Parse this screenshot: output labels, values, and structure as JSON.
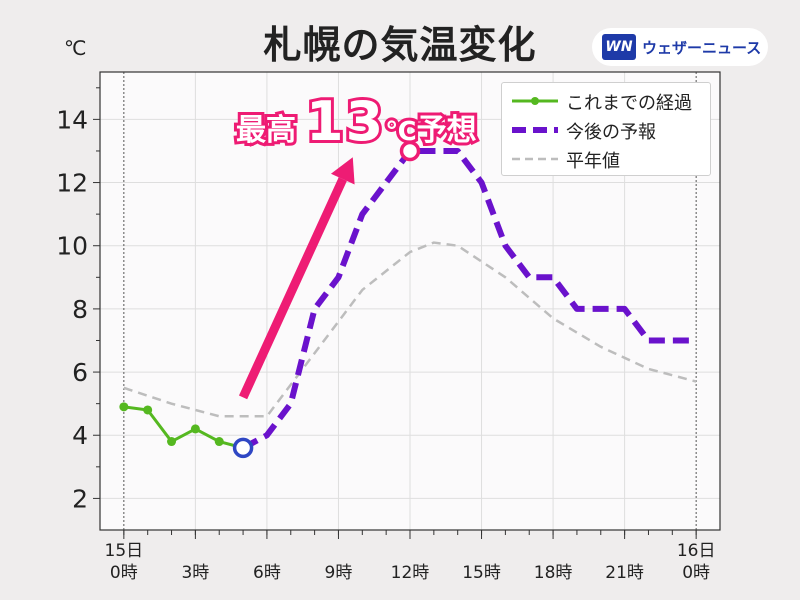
{
  "header": {
    "title": "札幌の気温変化",
    "unit_label": "℃",
    "brand_logo": "WN",
    "brand_name": "ウェザーニュース"
  },
  "callout": {
    "prefix": "最高",
    "value": "13",
    "unit": "℃",
    "suffix": "予想"
  },
  "colors": {
    "observed": "#55b820",
    "forecast": "#6a12cc",
    "normal": "#bdbdbd",
    "accent": "#ee1c74",
    "now_marker": "#2f47c4"
  },
  "chart_data": {
    "type": "line",
    "title": "札幌の気温変化",
    "ylabel": "℃",
    "xlabel": "",
    "ylim": [
      1,
      15.5
    ],
    "xlim": [
      -1,
      25
    ],
    "yticks": [
      2,
      4,
      6,
      8,
      10,
      12,
      14
    ],
    "xticks": [
      {
        "x": 0,
        "labels": [
          "15日",
          "0時"
        ]
      },
      {
        "x": 3,
        "labels": [
          "",
          "3時"
        ]
      },
      {
        "x": 6,
        "labels": [
          "",
          "6時"
        ]
      },
      {
        "x": 9,
        "labels": [
          "",
          "9時"
        ]
      },
      {
        "x": 12,
        "labels": [
          "",
          "12時"
        ]
      },
      {
        "x": 15,
        "labels": [
          "",
          "15時"
        ]
      },
      {
        "x": 18,
        "labels": [
          "",
          "18時"
        ]
      },
      {
        "x": 21,
        "labels": [
          "",
          "21時"
        ]
      },
      {
        "x": 24,
        "labels": [
          "16日",
          "0時"
        ]
      }
    ],
    "grid": true,
    "legend_position": "top-right",
    "series": [
      {
        "name": "これまでの経過",
        "style": "solid-markers",
        "x": [
          0,
          1,
          2,
          3,
          4,
          5
        ],
        "y": [
          4.9,
          4.8,
          3.8,
          4.2,
          3.8,
          3.6
        ]
      },
      {
        "name": "今後の予報",
        "style": "dashed-bold",
        "x": [
          5,
          6,
          7,
          8,
          9,
          10,
          11,
          12,
          13,
          14,
          15,
          16,
          17,
          18,
          19,
          20,
          21,
          22,
          23,
          24
        ],
        "y": [
          3.6,
          4.0,
          5.0,
          8.0,
          9.0,
          11.0,
          12.0,
          13.0,
          13.0,
          13.0,
          12.0,
          10.0,
          9.0,
          9.0,
          8.0,
          8.0,
          8.0,
          7.0,
          7.0,
          7.0
        ]
      },
      {
        "name": "平年値",
        "style": "dashed-thin",
        "x": [
          0,
          2,
          4,
          6,
          8,
          10,
          12,
          13,
          14,
          16,
          18,
          20,
          22,
          24
        ],
        "y": [
          5.5,
          5.0,
          4.6,
          4.6,
          6.6,
          8.6,
          9.8,
          10.1,
          10.0,
          9.0,
          7.7,
          6.8,
          6.1,
          5.7
        ]
      }
    ],
    "markers": [
      {
        "name": "now",
        "x": 5,
        "y": 3.6
      },
      {
        "name": "max",
        "x": 12,
        "y": 13.0
      }
    ],
    "arrow": {
      "from": {
        "x": 5,
        "y": 5.2
      },
      "to": {
        "x": 9.6,
        "y": 12.8
      }
    }
  }
}
